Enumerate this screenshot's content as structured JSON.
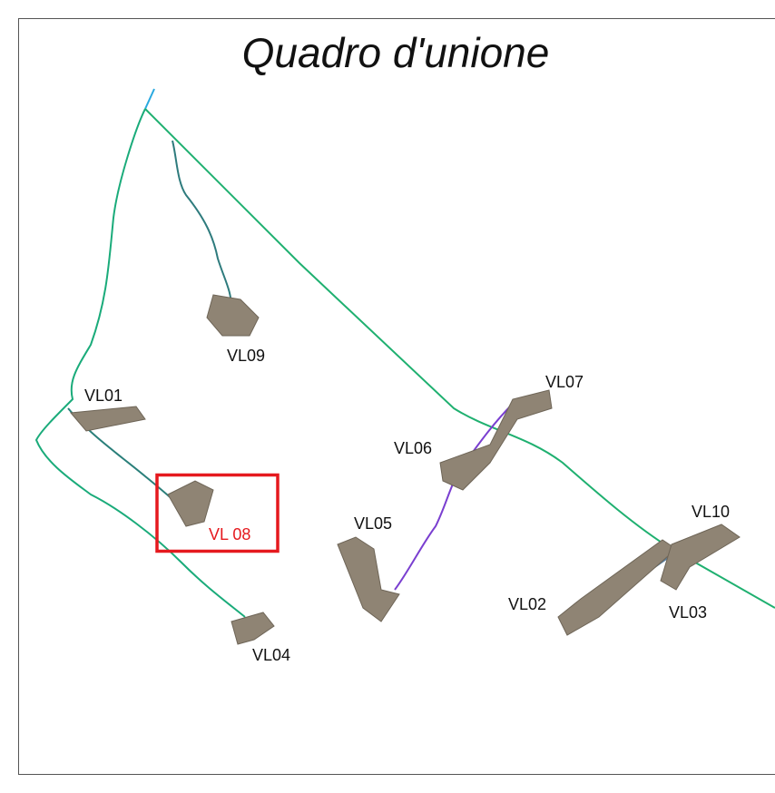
{
  "title": "Quadro d'unione",
  "sites": [
    {
      "label": "VL09"
    },
    {
      "label": "VL01"
    },
    {
      "label": "VL 08"
    },
    {
      "label": "VL04"
    },
    {
      "label": "VL05"
    },
    {
      "label": "VL06"
    },
    {
      "label": "VL07"
    },
    {
      "label": "VL10"
    },
    {
      "label": "VL02"
    },
    {
      "label": "VL03"
    }
  ]
}
